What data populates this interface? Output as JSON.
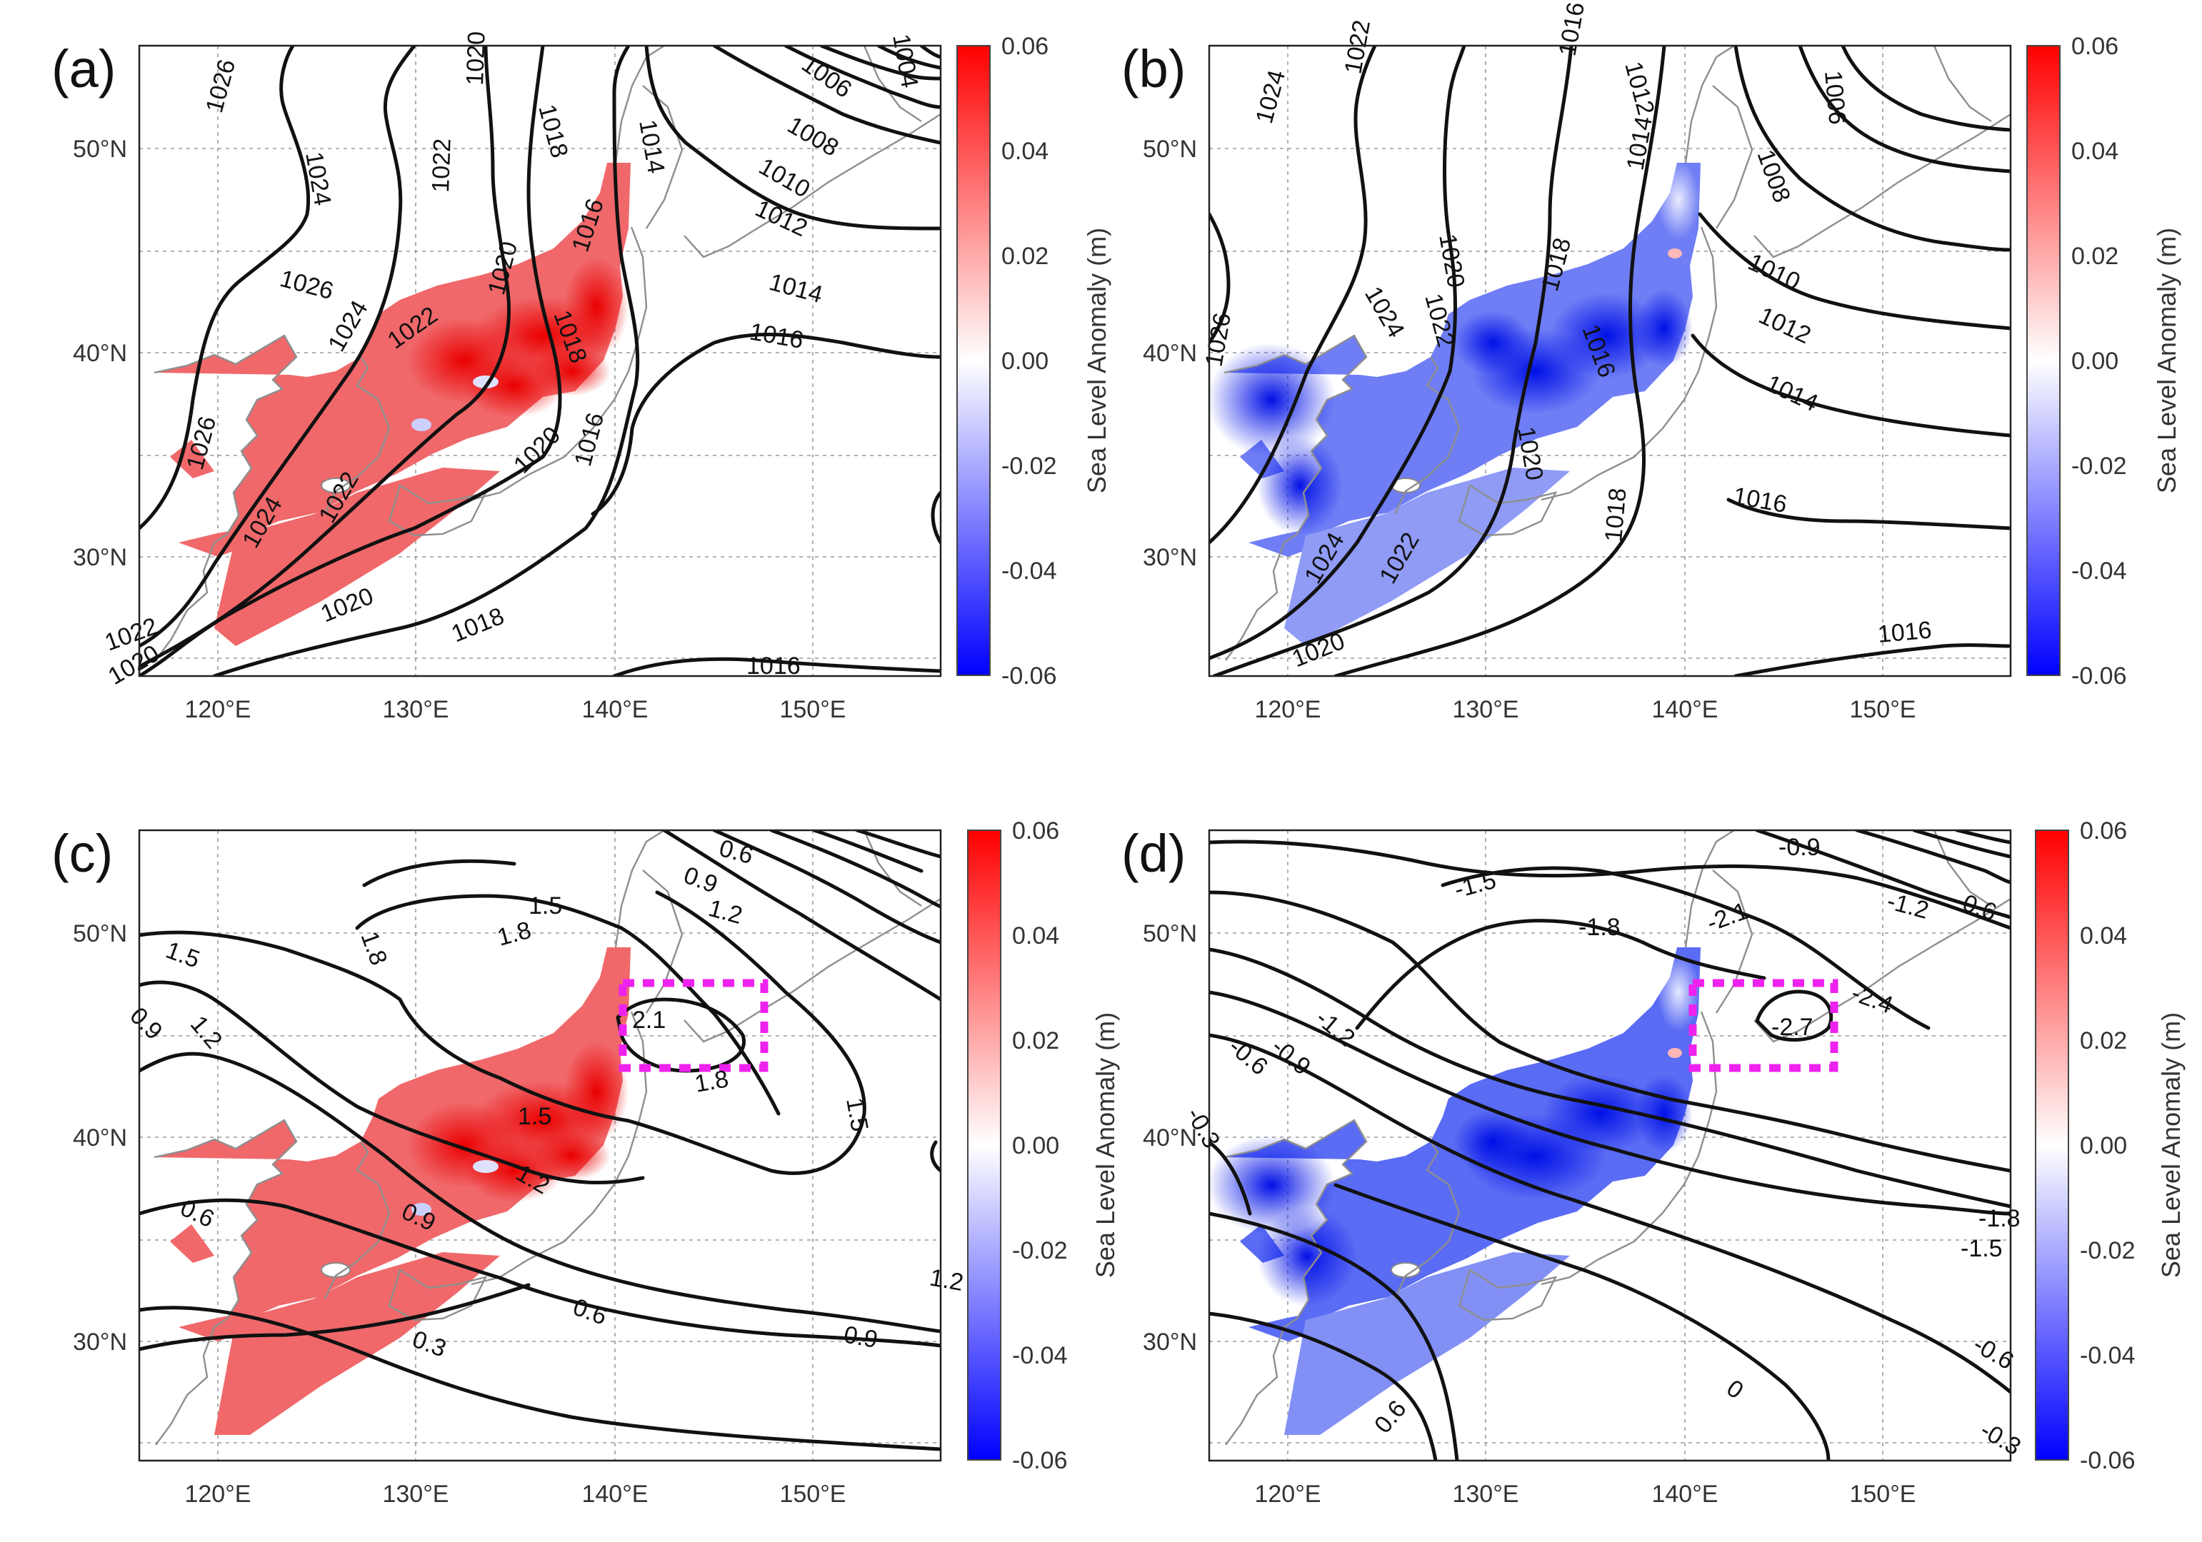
{
  "figure": {
    "colorbar": {
      "title": "Sea Level Anomaly (m)",
      "ticks": [
        "0.06",
        "0.04",
        "0.02",
        "0.00",
        "-0.02",
        "-0.04",
        "-0.06"
      ],
      "colors": {
        "max": "#ff0000",
        "mid": "#ffffff",
        "min": "#0000ff"
      }
    },
    "axis_ticks": {
      "lon": [
        "120°E",
        "130°E",
        "140°E",
        "150°E"
      ],
      "lat": [
        "50°N",
        "40°N",
        "30°N"
      ]
    },
    "panels": [
      {
        "letter": "(a)",
        "sea_level_sign": "positive",
        "highlight_box": false,
        "contour_labels": [
          "1026",
          "1024",
          "1020",
          "1018",
          "1022",
          "1014",
          "1016",
          "1004",
          "1006",
          "1008",
          "1010",
          "1012",
          "1026",
          "1014",
          "1024",
          "1022",
          "1020",
          "1016",
          "1018",
          "1016",
          "1026",
          "1024",
          "1022",
          "1020",
          "1018",
          "1016",
          "1022",
          "1020",
          "1016"
        ]
      },
      {
        "letter": "(b)",
        "sea_level_sign": "negative",
        "highlight_box": false,
        "contour_labels": [
          "1024",
          "1022",
          "1016",
          "1012",
          "1006",
          "1014",
          "1008",
          "1020",
          "1010",
          "1022",
          "1012",
          "1026",
          "1024",
          "1018",
          "1016",
          "1014",
          "1020",
          "1018",
          "1016",
          "1024",
          "1022",
          "1020",
          "1016"
        ]
      },
      {
        "letter": "(c)",
        "sea_level_sign": "positive",
        "highlight_box": true,
        "contour_labels": [
          "0.6",
          "0.9",
          "1.5",
          "1.2",
          "1.8",
          "1.5",
          "1.8",
          "1.2",
          "0.9",
          "2.1",
          "1.8",
          "1.5",
          "1.5",
          "1.2",
          "0.9",
          "0.6",
          "1.2",
          "0.6",
          "0.9",
          "0.3"
        ]
      },
      {
        "letter": "(d)",
        "sea_level_sign": "negative",
        "highlight_box": true,
        "contour_labels": [
          "-0.9",
          "-1.5",
          "-1.2",
          "-0.6",
          "-1.8",
          "-2.1",
          "-2.4",
          "-1.2",
          "-2.7",
          "-0.6",
          "-0.9",
          "-0.3",
          "-1.8",
          "-1.5",
          "-0.6",
          "-0.3",
          "0",
          "0.6"
        ]
      }
    ]
  }
}
